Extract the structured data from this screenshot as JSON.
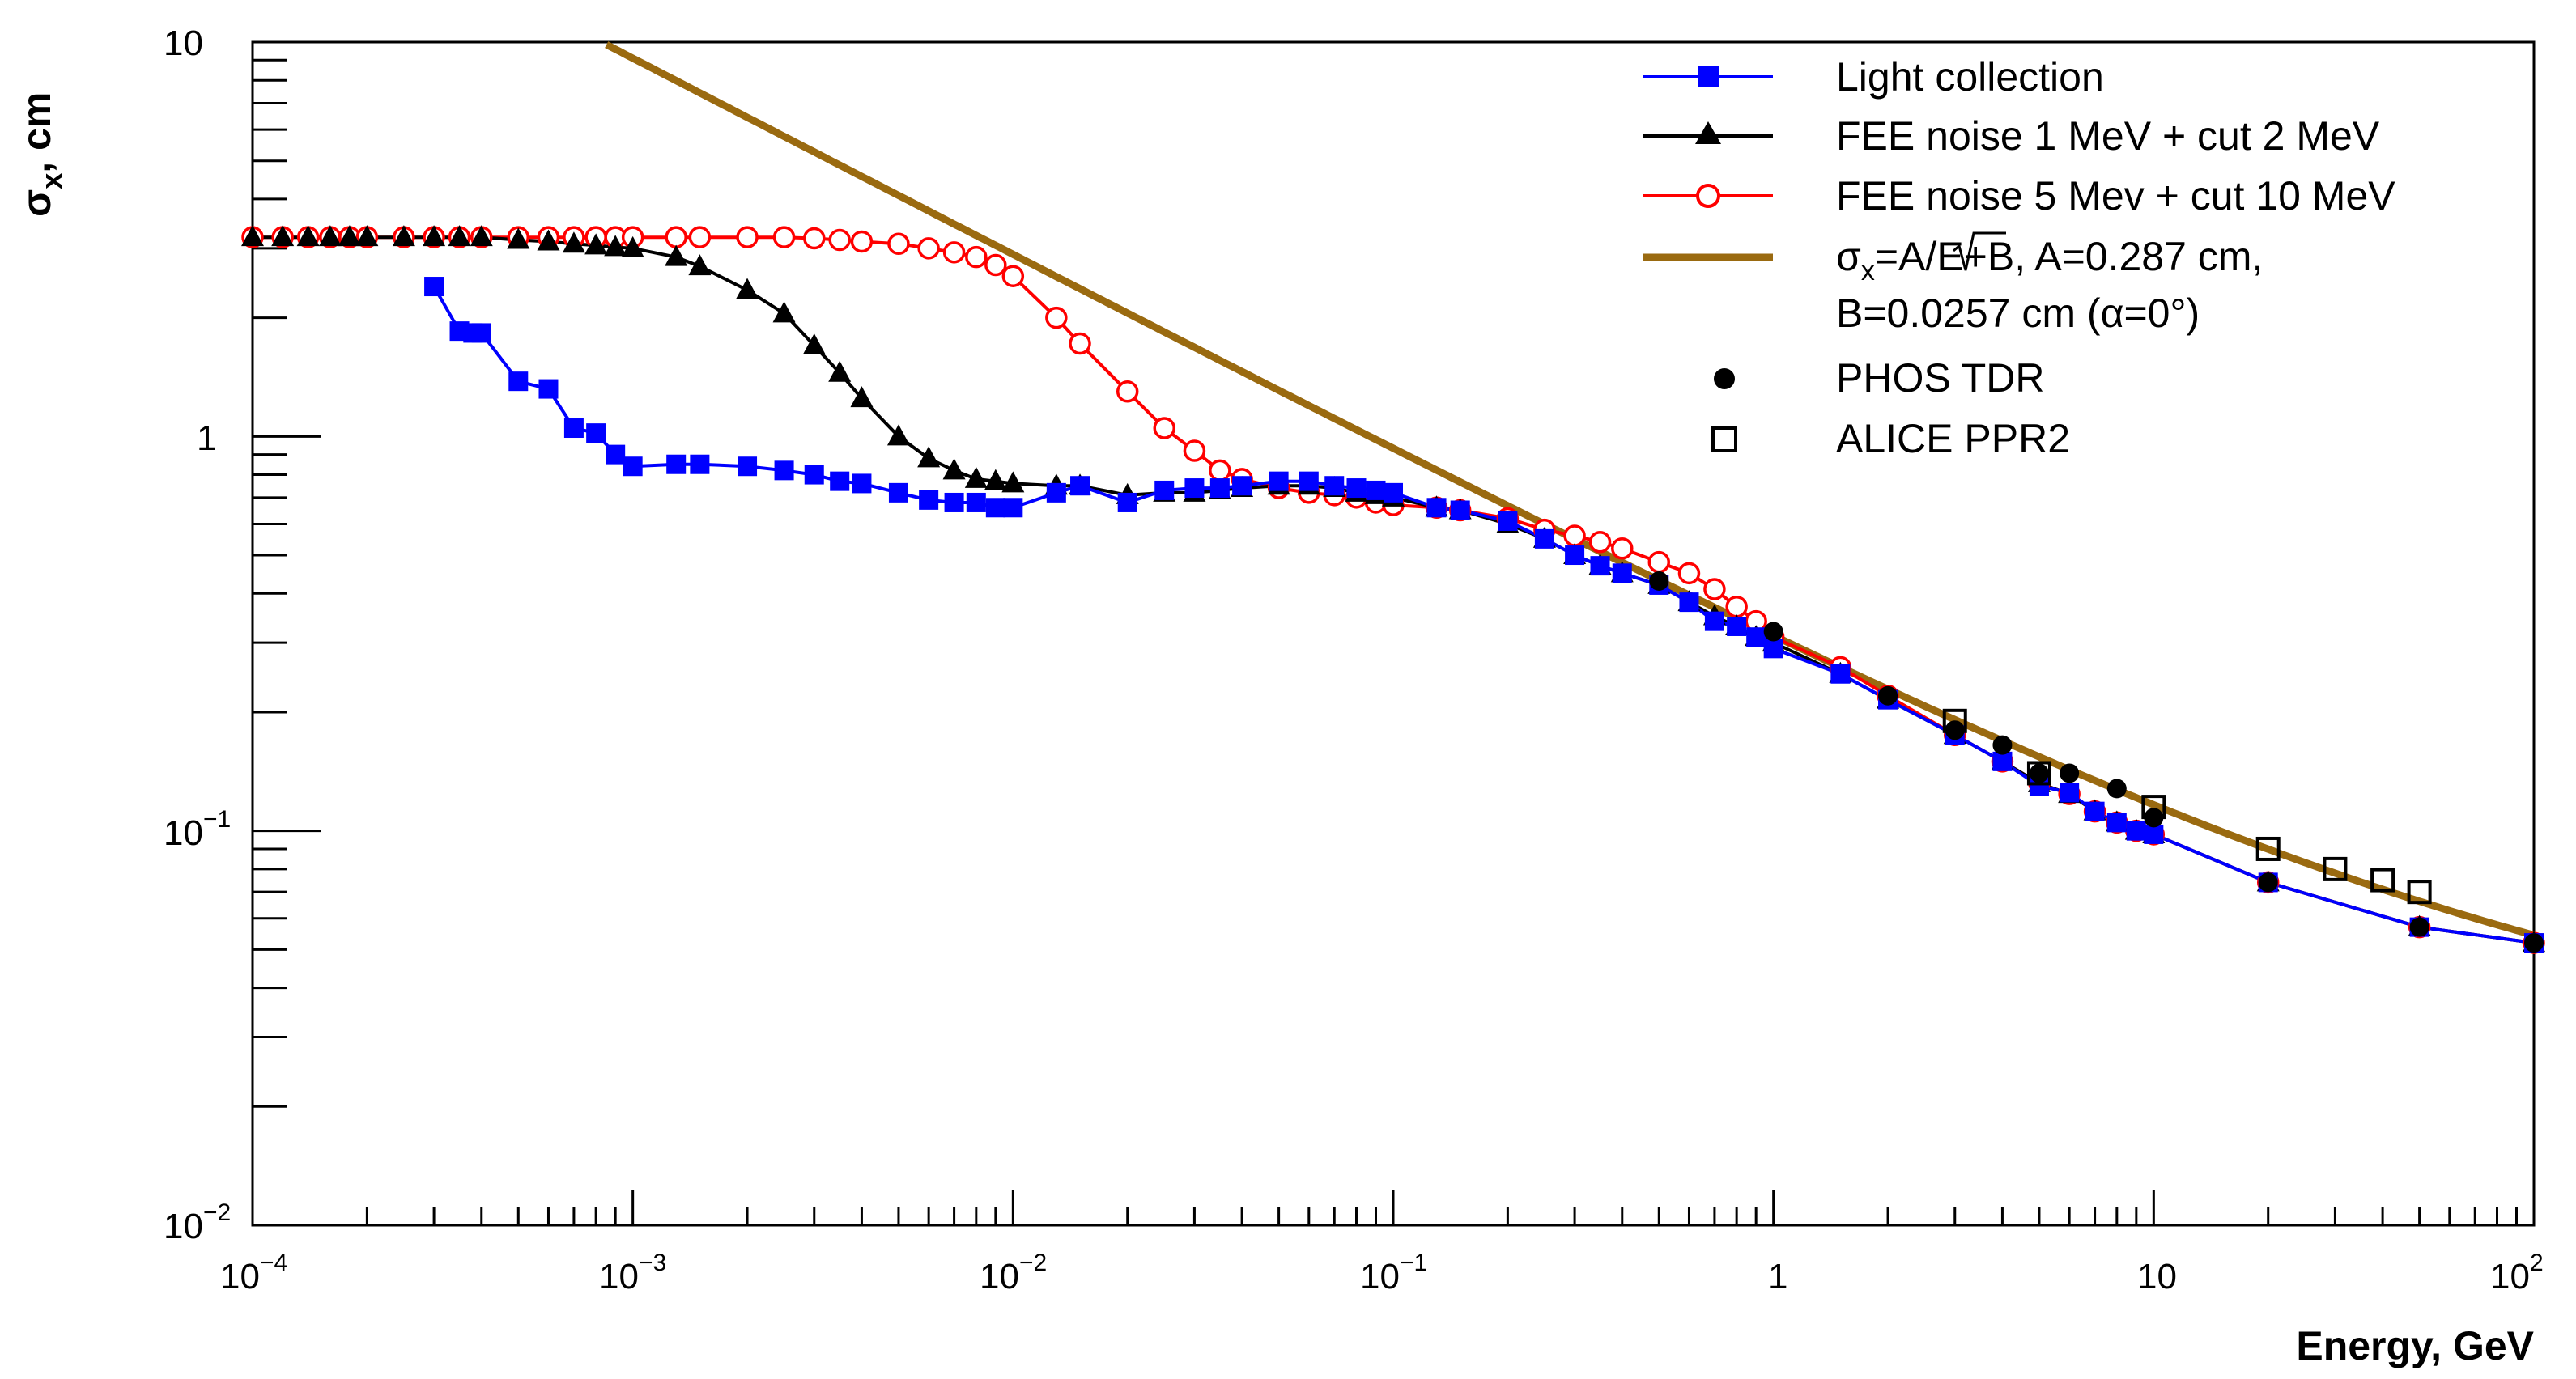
{
  "chart_data": {
    "type": "line",
    "title": "",
    "xlabel": "Energy, GeV",
    "ylabel_prefix": "σ",
    "ylabel_sub": "x",
    "ylabel_suffix": ", cm",
    "xscale": "log",
    "yscale": "log",
    "xlim": [
      0.0001,
      100
    ],
    "ylim": [
      0.01,
      10
    ],
    "grid": false,
    "legend_position": "top-right",
    "x_ticks": [
      {
        "value": 0.0001,
        "base": "10",
        "exp": "−4"
      },
      {
        "value": 0.001,
        "base": "10",
        "exp": "−3"
      },
      {
        "value": 0.01,
        "base": "10",
        "exp": "−2"
      },
      {
        "value": 0.1,
        "base": "10",
        "exp": "−1"
      },
      {
        "value": 1,
        "base": "1",
        "exp": ""
      },
      {
        "value": 10,
        "base": "10",
        "exp": ""
      },
      {
        "value": 100,
        "base": "10",
        "exp": "2"
      }
    ],
    "y_ticks": [
      {
        "value": 0.01,
        "base": "10",
        "exp": "−2"
      },
      {
        "value": 0.1,
        "base": "10",
        "exp": "−1"
      },
      {
        "value": 1,
        "base": "1",
        "exp": ""
      },
      {
        "value": 10,
        "base": "10",
        "exp": ""
      }
    ],
    "series": [
      {
        "name": "Light collection",
        "key": "light-collection",
        "color": "#0000ff",
        "marker": "square-filled",
        "line": true,
        "x": [
          0.0003,
          0.00035,
          0.00038,
          0.0004,
          0.0005,
          0.0006,
          0.0007,
          0.0008,
          0.0009,
          0.001,
          0.0013,
          0.0015,
          0.002,
          0.0025,
          0.003,
          0.0035,
          0.004,
          0.005,
          0.006,
          0.007,
          0.008,
          0.009,
          0.01,
          0.013,
          0.015,
          0.02,
          0.025,
          0.03,
          0.035,
          0.04,
          0.05,
          0.06,
          0.07,
          0.08,
          0.09,
          0.1,
          0.13,
          0.15,
          0.2,
          0.25,
          0.3,
          0.35,
          0.4,
          0.5,
          0.6,
          0.7,
          0.8,
          0.9,
          1,
          1.5,
          2,
          3,
          4,
          5,
          6,
          7,
          8,
          9,
          10,
          20,
          50,
          100
        ],
        "y": [
          2.4,
          1.85,
          1.83,
          1.83,
          1.38,
          1.32,
          1.05,
          1.02,
          0.9,
          0.84,
          0.85,
          0.85,
          0.84,
          0.82,
          0.8,
          0.77,
          0.76,
          0.72,
          0.69,
          0.68,
          0.68,
          0.66,
          0.66,
          0.72,
          0.75,
          0.68,
          0.73,
          0.74,
          0.74,
          0.75,
          0.77,
          0.77,
          0.75,
          0.74,
          0.73,
          0.72,
          0.66,
          0.65,
          0.61,
          0.55,
          0.5,
          0.47,
          0.45,
          0.42,
          0.38,
          0.34,
          0.33,
          0.31,
          0.29,
          0.25,
          0.215,
          0.175,
          0.15,
          0.13,
          0.125,
          0.112,
          0.105,
          0.1,
          0.098,
          0.074,
          0.057,
          0.052
        ]
      },
      {
        "name": "FEE noise 1 MeV + cut 2 MeV",
        "key": "fee-noise-1mev",
        "color": "#000000",
        "marker": "triangle-filled",
        "line": true,
        "x": [
          0.0001,
          0.00012,
          0.00014,
          0.00016,
          0.00018,
          0.0002,
          0.00025,
          0.0003,
          0.00035,
          0.0004,
          0.0005,
          0.0006,
          0.0007,
          0.0008,
          0.0009,
          0.001,
          0.0013,
          0.0015,
          0.002,
          0.0025,
          0.003,
          0.0035,
          0.004,
          0.005,
          0.006,
          0.007,
          0.008,
          0.009,
          0.01,
          0.013,
          0.015,
          0.02,
          0.025,
          0.03,
          0.035,
          0.04,
          0.05,
          0.06,
          0.07,
          0.08,
          0.09,
          0.1,
          0.13,
          0.15,
          0.2,
          0.25,
          0.3,
          0.35,
          0.4,
          0.5,
          0.6,
          0.7,
          0.8,
          0.9,
          1,
          1.5,
          2,
          3,
          4,
          5,
          6,
          7,
          8,
          9,
          10,
          20,
          50,
          100
        ],
        "y": [
          3.2,
          3.2,
          3.2,
          3.2,
          3.2,
          3.2,
          3.2,
          3.2,
          3.2,
          3.2,
          3.15,
          3.12,
          3.08,
          3.05,
          3.02,
          3.0,
          2.85,
          2.7,
          2.35,
          2.05,
          1.7,
          1.45,
          1.25,
          1.0,
          0.88,
          0.82,
          0.78,
          0.77,
          0.76,
          0.75,
          0.75,
          0.71,
          0.72,
          0.72,
          0.73,
          0.74,
          0.75,
          0.75,
          0.74,
          0.72,
          0.71,
          0.7,
          0.66,
          0.65,
          0.6,
          0.55,
          0.5,
          0.47,
          0.45,
          0.42,
          0.38,
          0.35,
          0.33,
          0.31,
          0.3,
          0.25,
          0.215,
          0.175,
          0.15,
          0.132,
          0.124,
          0.112,
          0.105,
          0.1,
          0.098,
          0.074,
          0.057,
          0.052
        ]
      },
      {
        "name": "FEE noise 5 Mev + cut 10 MeV",
        "key": "fee-noise-5mev",
        "color": "#ff0000",
        "marker": "circle-open",
        "line": true,
        "x": [
          0.0001,
          0.00012,
          0.00014,
          0.00016,
          0.00018,
          0.0002,
          0.00025,
          0.0003,
          0.00035,
          0.0004,
          0.0005,
          0.0006,
          0.0007,
          0.0008,
          0.0009,
          0.001,
          0.0013,
          0.0015,
          0.002,
          0.0025,
          0.003,
          0.0035,
          0.004,
          0.005,
          0.006,
          0.007,
          0.008,
          0.009,
          0.01,
          0.013,
          0.015,
          0.02,
          0.025,
          0.03,
          0.035,
          0.04,
          0.05,
          0.06,
          0.07,
          0.08,
          0.09,
          0.1,
          0.13,
          0.15,
          0.2,
          0.25,
          0.3,
          0.35,
          0.4,
          0.5,
          0.6,
          0.7,
          0.8,
          0.9,
          1,
          1.5,
          2,
          3,
          4,
          5,
          6,
          7,
          8,
          9,
          10,
          20,
          50,
          100
        ],
        "y": [
          3.2,
          3.2,
          3.2,
          3.2,
          3.2,
          3.2,
          3.2,
          3.2,
          3.2,
          3.2,
          3.2,
          3.2,
          3.2,
          3.2,
          3.2,
          3.2,
          3.2,
          3.2,
          3.2,
          3.2,
          3.18,
          3.15,
          3.12,
          3.08,
          3.0,
          2.93,
          2.85,
          2.72,
          2.55,
          2.0,
          1.72,
          1.3,
          1.05,
          0.92,
          0.82,
          0.78,
          0.74,
          0.72,
          0.71,
          0.7,
          0.68,
          0.67,
          0.66,
          0.65,
          0.62,
          0.58,
          0.56,
          0.54,
          0.52,
          0.48,
          0.45,
          0.41,
          0.37,
          0.34,
          0.31,
          0.26,
          0.22,
          0.175,
          0.15,
          0.132,
          0.124,
          0.112,
          0.105,
          0.1,
          0.098,
          0.074,
          0.057,
          0.052
        ]
      },
      {
        "name_parts": [
          "σ",
          "x",
          "=A/",
          "E",
          "+B, A=0.287 cm,"
        ],
        "name_line2": "B=0.0257 cm (α=0°)",
        "key": "fit-curve",
        "color": "#9a6a10",
        "marker": "none",
        "line": true,
        "formula": {
          "A": 0.287,
          "B": 0.0257
        },
        "x_range": [
          0.00082,
          100
        ]
      },
      {
        "name": "PHOS TDR",
        "key": "phos-tdr",
        "color": "#000000",
        "marker": "circle-filled",
        "line": false,
        "x": [
          0.5,
          1,
          2,
          3,
          4,
          5,
          6,
          8,
          10,
          20,
          50,
          100
        ],
        "y": [
          0.43,
          0.32,
          0.22,
          0.18,
          0.165,
          0.14,
          0.14,
          0.128,
          0.108,
          0.074,
          0.057,
          0.052
        ]
      },
      {
        "name": "ALICE PPR2",
        "key": "alice-ppr2",
        "color": "#000000",
        "marker": "square-open",
        "line": false,
        "x": [
          3,
          5,
          10,
          20,
          30,
          40,
          50
        ],
        "y": [
          0.19,
          0.14,
          0.115,
          0.09,
          0.08,
          0.075,
          0.07
        ]
      }
    ]
  }
}
